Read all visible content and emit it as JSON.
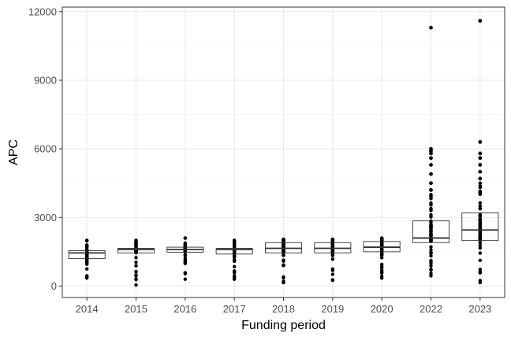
{
  "chart_data": {
    "type": "box",
    "title": "",
    "xlabel": "Funding period",
    "ylabel": "APC",
    "categories": [
      "2014",
      "2015",
      "2016",
      "2017",
      "2018",
      "2019",
      "2020",
      "2022",
      "2023"
    ],
    "ylim": [
      -500,
      12200
    ],
    "yticks": [
      0,
      3000,
      6000,
      9000,
      12000
    ],
    "ytick_labels": [
      "0",
      "3000",
      "6000",
      "9000",
      "12000"
    ],
    "grid": true,
    "legend": "none",
    "boxes": [
      {
        "category": "2014",
        "q1": 1200,
        "median": 1450,
        "q3": 1550,
        "whisker_low": 350,
        "whisker_high": 2000
      },
      {
        "category": "2015",
        "q1": 1450,
        "median": 1600,
        "q3": 1650,
        "whisker_low": 50,
        "whisker_high": 2000
      },
      {
        "category": "2016",
        "q1": 1480,
        "median": 1600,
        "q3": 1700,
        "whisker_low": 300,
        "whisker_high": 2100
      },
      {
        "category": "2017",
        "q1": 1400,
        "median": 1600,
        "q3": 1650,
        "whisker_low": 300,
        "whisker_high": 2000
      },
      {
        "category": "2018",
        "q1": 1450,
        "median": 1650,
        "q3": 1900,
        "whisker_low": 150,
        "whisker_high": 2050
      },
      {
        "category": "2019",
        "q1": 1450,
        "median": 1650,
        "q3": 1900,
        "whisker_low": 250,
        "whisker_high": 2050
      },
      {
        "category": "2020",
        "q1": 1500,
        "median": 1700,
        "q3": 1950,
        "whisker_low": 350,
        "whisker_high": 2100
      },
      {
        "category": "2022",
        "q1": 1900,
        "median": 2100,
        "q3": 2850,
        "whisker_low": 450,
        "whisker_high": 4000
      },
      {
        "category": "2023",
        "q1": 2000,
        "median": 2450,
        "q3": 3200,
        "whisker_low": 150,
        "whisker_high": 4500
      }
    ],
    "outliers": [
      {
        "category": "2022",
        "values": [
          4200,
          4500,
          4900,
          5300,
          5600,
          5800,
          5900,
          6000,
          11300
        ]
      },
      {
        "category": "2023",
        "values": [
          4700,
          5000,
          5300,
          5600,
          5800,
          6300,
          11600
        ]
      }
    ],
    "colors": {
      "point": "#000000",
      "box_stroke": "#333333",
      "box_fill": "#ffffff",
      "grid_major": "#ebebeb",
      "grid_minor": "#f5f5f5",
      "panel_border": "#333333",
      "tick_text": "#4d4d4d"
    }
  }
}
